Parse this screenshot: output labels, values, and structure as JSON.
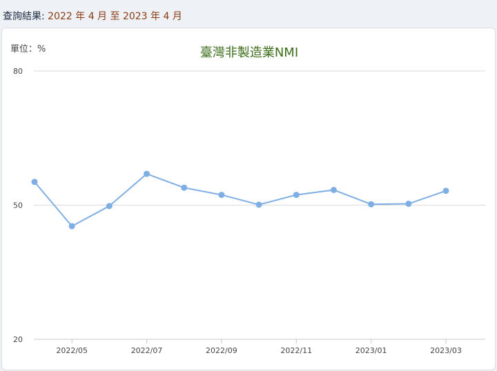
{
  "header": {
    "label": "查詢結果:",
    "range": "2022 年 4 月 至 2023 年 4 月"
  },
  "chart_data": {
    "type": "line",
    "title": "臺灣非製造業NMI",
    "unit_label": "單位：%",
    "y_ticks": [
      "80",
      "50",
      "20"
    ],
    "ylim": [
      20,
      80
    ],
    "x": [
      "2022/04",
      "2022/05",
      "2022/06",
      "2022/07",
      "2022/08",
      "2022/09",
      "2022/10",
      "2022/11",
      "2022/12",
      "2023/01",
      "2023/02",
      "2023/03"
    ],
    "x_tick_labels": [
      "2022/05",
      "2022/07",
      "2022/09",
      "2022/11",
      "2023/01",
      "2023/03"
    ],
    "series": [
      {
        "values": [
          55.2,
          45.3,
          49.8,
          57.0,
          53.9,
          52.3,
          50.1,
          52.3,
          53.4,
          50.2,
          50.3,
          53.2
        ]
      }
    ],
    "colors": {
      "line": "#7eaee3",
      "title": "#3c6e1a",
      "grid": "#d9d9d9"
    },
    "grid": true
  }
}
